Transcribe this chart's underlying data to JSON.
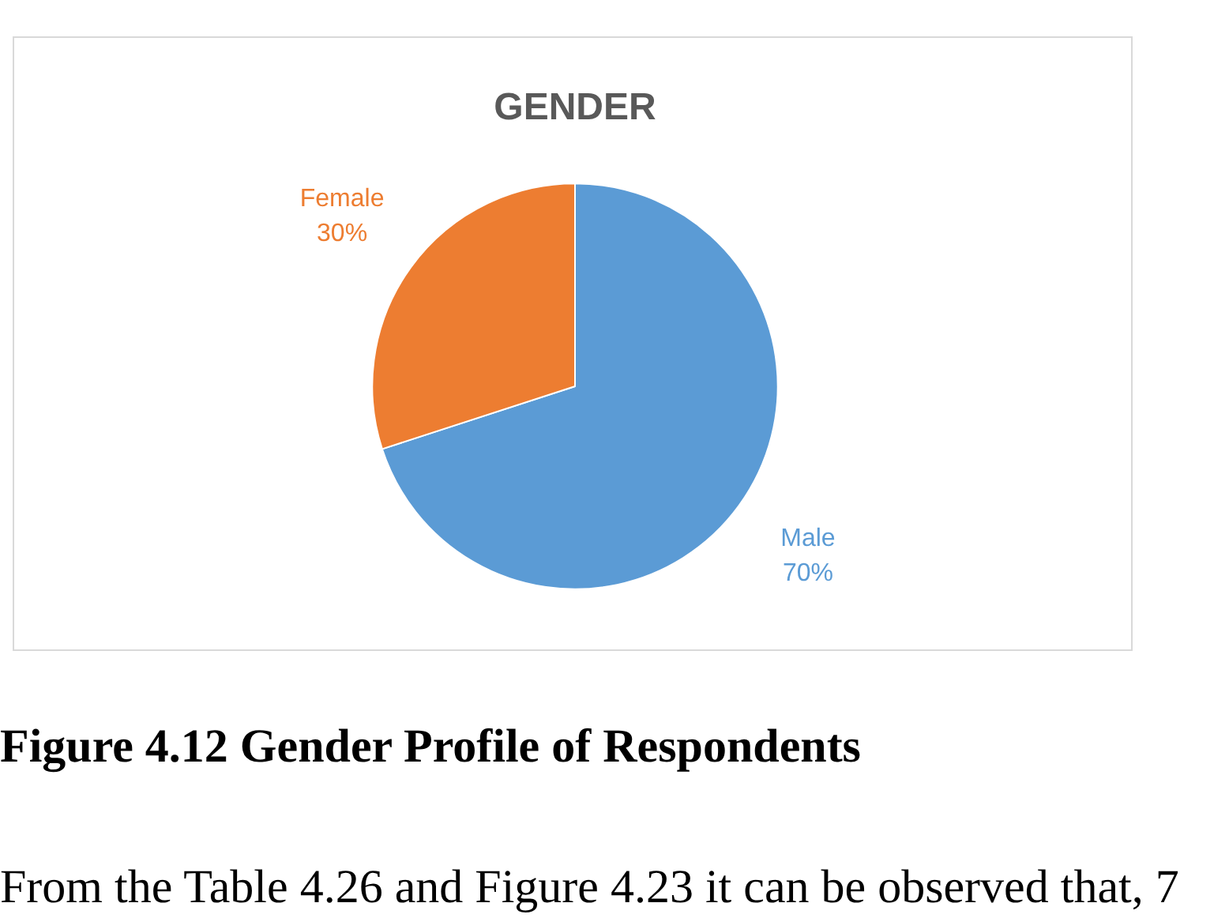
{
  "chart_data": {
    "type": "pie",
    "title": "GENDER",
    "categories": [
      "Male",
      "Female"
    ],
    "values": [
      70,
      30
    ],
    "colors": [
      "#5b9bd5",
      "#ed7d31"
    ],
    "value_labels": [
      "70%",
      "30%"
    ],
    "annotations": [
      "Figure 4.12 Gender Profile of Respondents",
      "From the Table 4.26 and Figure 4.23 it can be observed that, 7"
    ]
  }
}
